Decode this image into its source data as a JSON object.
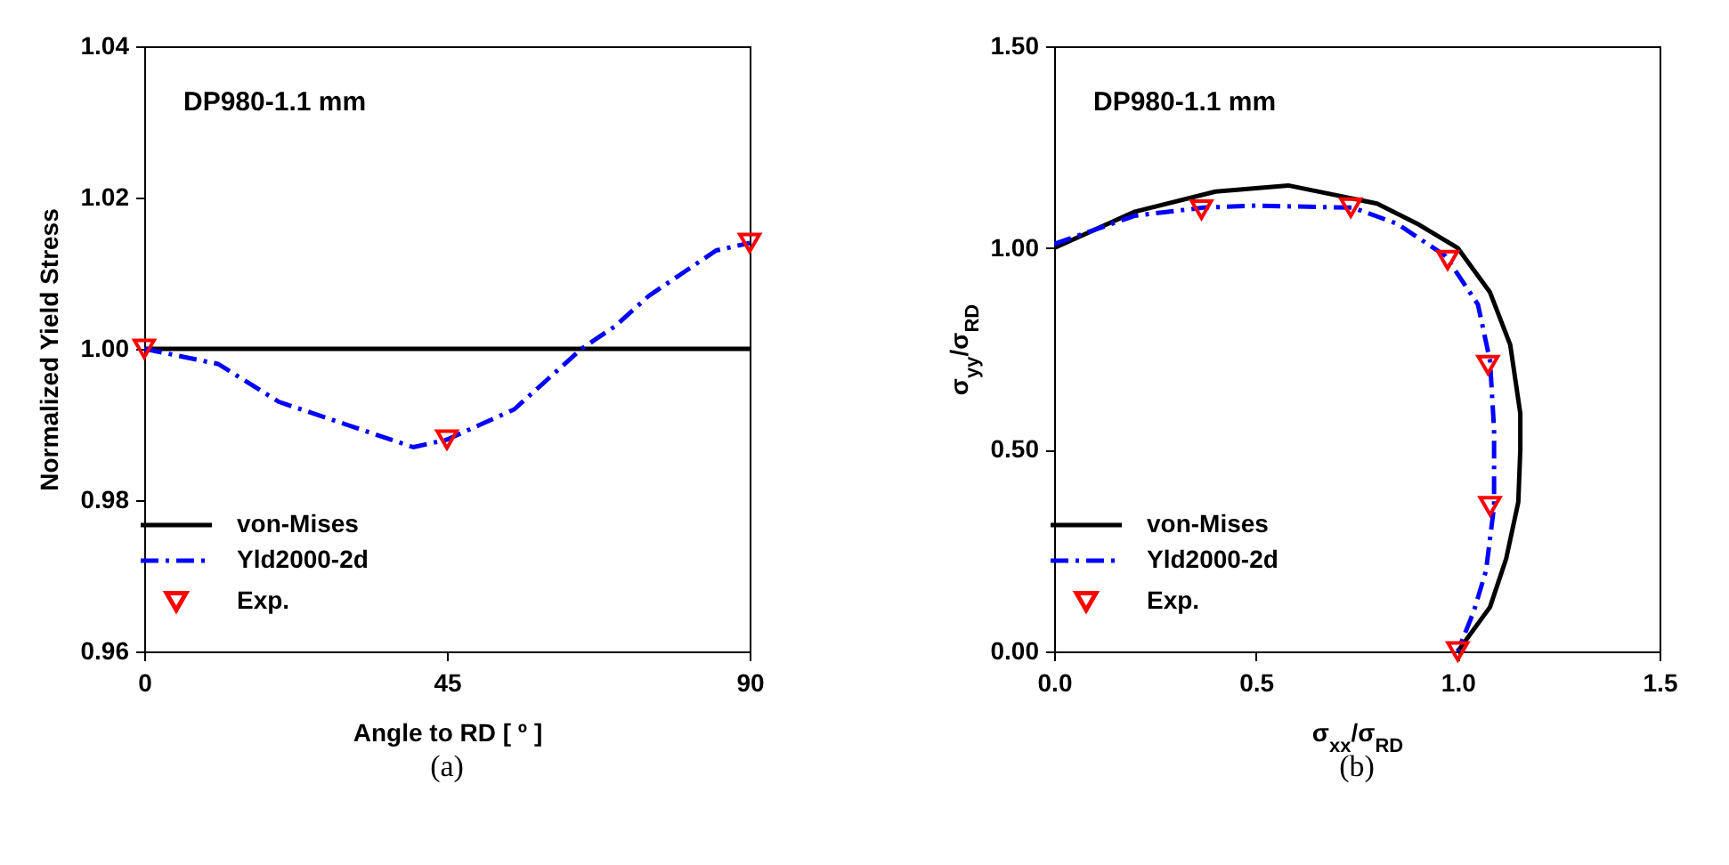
{
  "chart_data": [
    {
      "type": "line",
      "title": "(a)",
      "xlabel": "Angle to RD [ º ]",
      "ylabel": "Normalized Yield Stress",
      "annotations": [
        "DP980-1.1 mm"
      ],
      "xlim": [
        0,
        90
      ],
      "ylim": [
        0.96,
        1.04
      ],
      "xticks": [
        0,
        45,
        90
      ],
      "yticks": [
        0.96,
        0.98,
        {
          "value": 1,
          "label": "1.00"
        },
        1.02,
        1.04
      ],
      "legend": "bottom left",
      "series": [
        {
          "name": "von-Mises",
          "type": "line",
          "color": "#000000",
          "line_style": "solid",
          "x": [
            0,
            90
          ],
          "values": [
            1.0,
            1.0
          ]
        },
        {
          "name": "Yld2000-2d",
          "type": "line",
          "color": "#0000ff",
          "line_style": "dashed",
          "x": [
            0,
            11,
            20,
            30,
            40,
            45,
            50,
            55,
            60,
            65,
            70,
            75,
            80,
            85,
            90
          ],
          "values": [
            1.0,
            0.998,
            0.993,
            0.99,
            0.987,
            0.988,
            0.99,
            0.992,
            0.996,
            1.0,
            1.003,
            1.007,
            1.01,
            1.013,
            1.014
          ]
        },
        {
          "name": "Exp.",
          "type": "scatter",
          "color": "#ff0000",
          "marker": "triangle",
          "x": [
            0,
            45,
            90
          ],
          "values": [
            1.0,
            0.988,
            1.014
          ]
        }
      ]
    },
    {
      "type": "line",
      "title": "(b)",
      "xlabel": "σ$_{xx}$/σ$_{RD}$",
      "ylabel": "σ$_{yy}$/σ$_{RD}$",
      "annotations": [
        "DP980-1.1 mm"
      ],
      "xlim": [
        0,
        1.5
      ],
      "ylim": [
        0,
        1.5
      ],
      "xticks": [
        {
          "value": 0,
          "label": "0.0"
        },
        0.5,
        {
          "value": 1,
          "label": "1.0"
        },
        1.5
      ],
      "yticks": [
        {
          "value": 0,
          "label": "0.00"
        },
        {
          "value": 0.5,
          "label": "0.50"
        },
        {
          "value": 1,
          "label": "1.00"
        },
        {
          "value": 1.5,
          "label": "1.50"
        }
      ],
      "legend": "bottom left",
      "series": [
        {
          "name": "von-Mises",
          "type": "line",
          "color": "#000000",
          "line_style": "solid",
          "x": [
            0,
            0.2,
            0.4,
            0.58,
            0.8,
            0.9,
            1.0,
            1.08,
            1.13,
            1.155,
            1.155,
            1.15,
            1.12,
            1.08,
            1.0
          ],
          "values": [
            1.0,
            1.09,
            1.14,
            1.155,
            1.11,
            1.06,
            1.0,
            0.89,
            0.76,
            0.59,
            0.5,
            0.37,
            0.23,
            0.11,
            0.0
          ]
        },
        {
          "name": "Yld2000-2d",
          "type": "line",
          "color": "#0000ff",
          "line_style": "dashed",
          "x": [
            0,
            0.2,
            0.37,
            0.5,
            0.74,
            0.85,
            0.97,
            1.05,
            1.08,
            1.09,
            1.09,
            1.07,
            1.04,
            1.0
          ],
          "values": [
            1.01,
            1.08,
            1.1,
            1.105,
            1.1,
            1.06,
            0.98,
            0.86,
            0.72,
            0.55,
            0.36,
            0.2,
            0.1,
            0.0
          ]
        },
        {
          "name": "Exp.",
          "type": "scatter",
          "color": "#ff0000",
          "marker": "triangle",
          "x": [
            0.365,
            0.735,
            0.975,
            1.075,
            1.08,
            1.0
          ],
          "values": [
            1.095,
            1.1,
            0.97,
            0.71,
            0.36,
            0.0
          ]
        }
      ]
    }
  ]
}
